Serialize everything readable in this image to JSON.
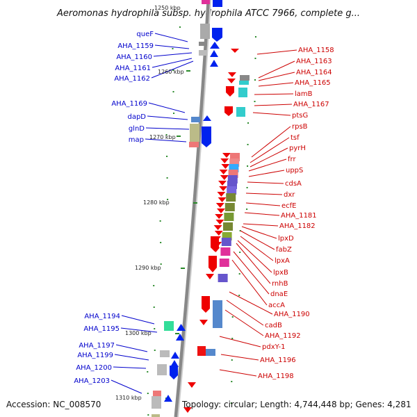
{
  "title": "Aeromonas hydrophila subsp. hydrophila ATCC 7966, complete g...",
  "footer": {
    "accession": "Accession: NC_008570",
    "topology": "Topology: circular; Length: 4,744,448 bp; Genes: 4,281"
  },
  "colors": {
    "backbone": "#888888",
    "tick": "#2a8a2a",
    "left_label": "#0000cc",
    "right_label": "#cc0000",
    "red_gene": "#ee0000",
    "blue_gene": "#0022ee"
  },
  "kbp_labels": [
    "1250 kbp",
    "1260 kbp",
    "1270 kbp",
    "1280 kbp",
    "1290 kbp",
    "1300 kbp",
    "1310 kbp"
  ],
  "left_labels": [
    "queF",
    "AHA_1159",
    "AHA_1160",
    "AHA_1161",
    "AHA_1162",
    "AHA_1169",
    "dapD",
    "glnD",
    "map",
    "AHA_1194",
    "AHA_1195",
    "AHA_1197",
    "AHA_1199",
    "AHA_1200",
    "AHA_1203"
  ],
  "right_labels": [
    "AHA_1158",
    "AHA_1163",
    "AHA_1164",
    "AHA_1165",
    "lamB",
    "AHA_1167",
    "ptsG",
    "rpsB",
    "tsf",
    "pyrH",
    "frr",
    "uppS",
    "cdsA",
    "dxr",
    "ecfE",
    "AHA_1181",
    "AHA_1182",
    "lpxD",
    "fabZ",
    "lpxA",
    "lpxB",
    "rnhB",
    "dnaE",
    "accA",
    "AHA_1190",
    "cadB",
    "AHA_1192",
    "pdxY-1",
    "AHA_1196",
    "AHA_1198"
  ]
}
